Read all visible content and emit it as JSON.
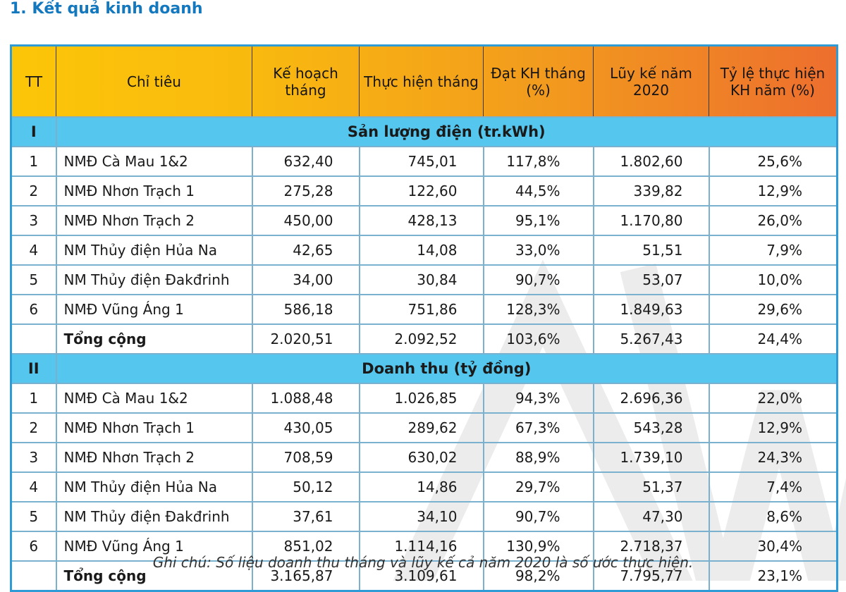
{
  "page": {
    "title": "1. Kết quả kinh doanh",
    "note": "Ghi chú: Số liệu doanh thu tháng và lũy kế cả năm 2020 là số ước thực hiện."
  },
  "colors": {
    "title_blue": "#1478be",
    "header_gradient_left": "#fcc608",
    "header_gradient_right": "#ed6e2e",
    "section_row_cyan": "#55c7ef",
    "grid_blue": "#79b1cf",
    "outer_border_blue": "#2e9ad6",
    "watermark_gray": "#ececec"
  },
  "table": {
    "columns": [
      "TT",
      "Chỉ tiêu",
      "Kế hoạch tháng",
      "Thực hiện tháng",
      "Đạt KH tháng (%)",
      "Lũy kế năm 2020",
      "Tỷ lệ thực hiện KH năm (%)"
    ],
    "sections": [
      {
        "numeral": "I",
        "title": "Sản lượng điện (tr.kWh)",
        "rows": [
          [
            "1",
            "NMĐ Cà Mau 1&2",
            "632,40",
            "745,01",
            "117,8%",
            "1.802,60",
            "25,6%"
          ],
          [
            "2",
            "NMĐ Nhơn Trạch 1",
            "275,28",
            "122,60",
            "44,5%",
            "339,82",
            "12,9%"
          ],
          [
            "3",
            "NMĐ Nhơn Trạch 2",
            "450,00",
            "428,13",
            "95,1%",
            "1.170,80",
            "26,0%"
          ],
          [
            "4",
            "NM Thủy điện Hủa Na",
            "42,65",
            "14,08",
            "33,0%",
            "51,51",
            "7,9%"
          ],
          [
            "5",
            "NM Thủy điện Đakđrinh",
            "34,00",
            "30,84",
            "90,7%",
            "53,07",
            "10,0%"
          ],
          [
            "6",
            "NMĐ Vũng Áng 1",
            "586,18",
            "751,86",
            "128,3%",
            "1.849,63",
            "29,6%"
          ]
        ],
        "total": {
          "label": "Tổng cộng",
          "values": [
            "2.020,51",
            "2.092,52",
            "103,6%",
            "5.267,43",
            "24,4%"
          ]
        }
      },
      {
        "numeral": "II",
        "title": "Doanh thu (tỷ đồng)",
        "rows": [
          [
            "1",
            "NMĐ Cà Mau 1&2",
            "1.088,48",
            "1.026,85",
            "94,3%",
            "2.696,36",
            "22,0%"
          ],
          [
            "2",
            "NMĐ Nhơn Trạch 1",
            "430,05",
            "289,62",
            "67,3%",
            "543,28",
            "12,9%"
          ],
          [
            "3",
            "NMĐ Nhơn Trạch 2",
            "708,59",
            "630,02",
            "88,9%",
            "1.739,10",
            "24,3%"
          ],
          [
            "4",
            "NM Thủy điện Hủa Na",
            "50,12",
            "14,86",
            "29,7%",
            "51,37",
            "7,4%"
          ],
          [
            "5",
            "NM Thủy điện Đakđrinh",
            "37,61",
            "34,10",
            "90,7%",
            "47,30",
            "8,6%"
          ],
          [
            "6",
            "NMĐ Vũng Áng 1",
            "851,02",
            "1.114,16",
            "130,9%",
            "2.718,37",
            "30,4%"
          ]
        ],
        "total": {
          "label": "Tổng cộng",
          "values": [
            "3.165,87",
            "3.109,61",
            "98,2%",
            "7.795,77",
            "23,1%"
          ]
        }
      }
    ]
  }
}
